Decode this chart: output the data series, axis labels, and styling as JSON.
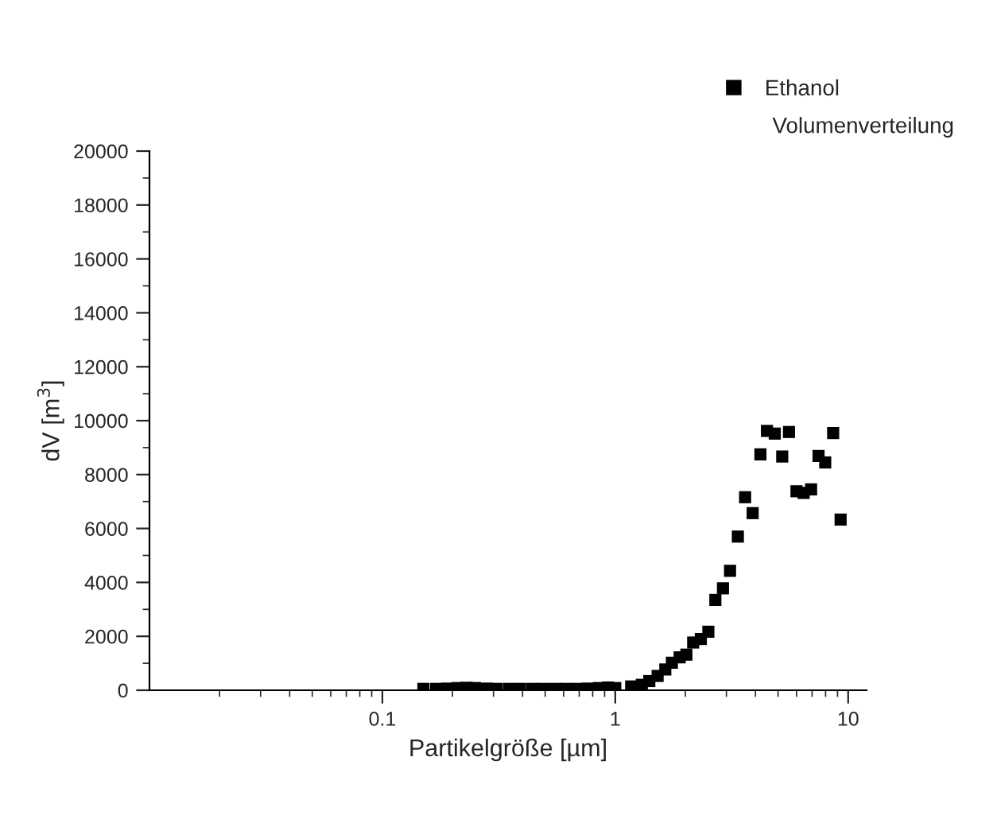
{
  "chart_data": {
    "type": "scatter",
    "xlabel": "Partikelgröße [µm]",
    "ylabel": "dV [m$^{3}$]",
    "annotations": [
      "Volumenverteilung"
    ],
    "log": "x",
    "xlim": [
      0.01,
      12
    ],
    "xticks": [
      0.1,
      1,
      10
    ],
    "ylim": [
      0,
      20000
    ],
    "yticks": [
      0,
      2000,
      4000,
      6000,
      8000,
      10000,
      12000,
      14000,
      16000,
      18000,
      20000
    ],
    "grid": false,
    "legend": "top right",
    "marker": "square",
    "series": [
      {
        "name": "Ethanol",
        "color": "#000000",
        "x": [
          0.15,
          0.17,
          0.19,
          0.21,
          0.23,
          0.25,
          0.28,
          0.31,
          0.35,
          0.39,
          0.44,
          0.49,
          0.55,
          0.61,
          0.68,
          0.76,
          0.85,
          0.93,
          1.0,
          1.17,
          1.3,
          1.4,
          1.52,
          1.64,
          1.75,
          1.89,
          2.02,
          2.16,
          2.33,
          2.51,
          2.69,
          2.9,
          3.11,
          3.36,
          3.61,
          3.89,
          4.2,
          4.48,
          4.84,
          5.21,
          5.57,
          6.0,
          6.44,
          6.93,
          7.46,
          7.97,
          8.62,
          9.28
        ],
        "values": [
          50,
          50,
          60,
          80,
          90,
          80,
          60,
          50,
          50,
          50,
          50,
          50,
          50,
          50,
          50,
          60,
          80,
          100,
          80,
          140,
          200,
          340,
          530,
          770,
          1020,
          1220,
          1320,
          1770,
          1900,
          2170,
          3350,
          3780,
          4430,
          5700,
          7160,
          6570,
          8750,
          9620,
          9520,
          8670,
          9580,
          7380,
          7320,
          7450,
          8690,
          8450,
          9540,
          6330
        ]
      }
    ]
  }
}
